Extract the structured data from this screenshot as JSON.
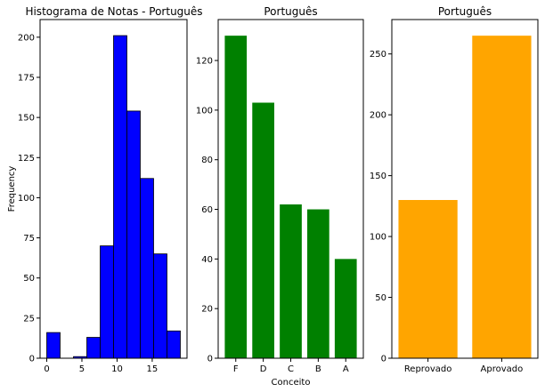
{
  "chart_data": [
    {
      "type": "histogram",
      "title": "Histograma de Notas - Português",
      "xlabel": "",
      "ylabel": "Frequency",
      "bin_edges": [
        0,
        1.9,
        3.8,
        5.7,
        7.6,
        9.5,
        11.4,
        13.3,
        15.2,
        17.1,
        19
      ],
      "values": [
        16,
        0,
        1,
        13,
        70,
        201,
        154,
        112,
        65,
        17
      ],
      "xticks": [
        0,
        5,
        10,
        15
      ],
      "yticks": [
        0,
        25,
        50,
        75,
        100,
        125,
        150,
        175,
        200
      ],
      "xlim": [
        -0.95,
        19.95
      ],
      "ylim": [
        0,
        211
      ],
      "bar_color": "#0000ff",
      "edge_color": "#000000",
      "grid": false
    },
    {
      "type": "bar",
      "title": "Português",
      "xlabel": "Conceito",
      "ylabel": "",
      "categories": [
        "F",
        "D",
        "C",
        "B",
        "A"
      ],
      "values": [
        130,
        103,
        62,
        60,
        40
      ],
      "yticks": [
        0,
        20,
        40,
        60,
        80,
        100,
        120
      ],
      "ylim": [
        0,
        136.5
      ],
      "bar_color": "#008000",
      "grid": false
    },
    {
      "type": "bar",
      "title": "Português",
      "xlabel": "",
      "ylabel": "",
      "categories": [
        "Reprovado",
        "Aprovado"
      ],
      "values": [
        130,
        265
      ],
      "yticks": [
        0,
        50,
        100,
        150,
        200,
        250
      ],
      "ylim": [
        0,
        278.25
      ],
      "bar_color": "#ffa500",
      "grid": false
    }
  ]
}
